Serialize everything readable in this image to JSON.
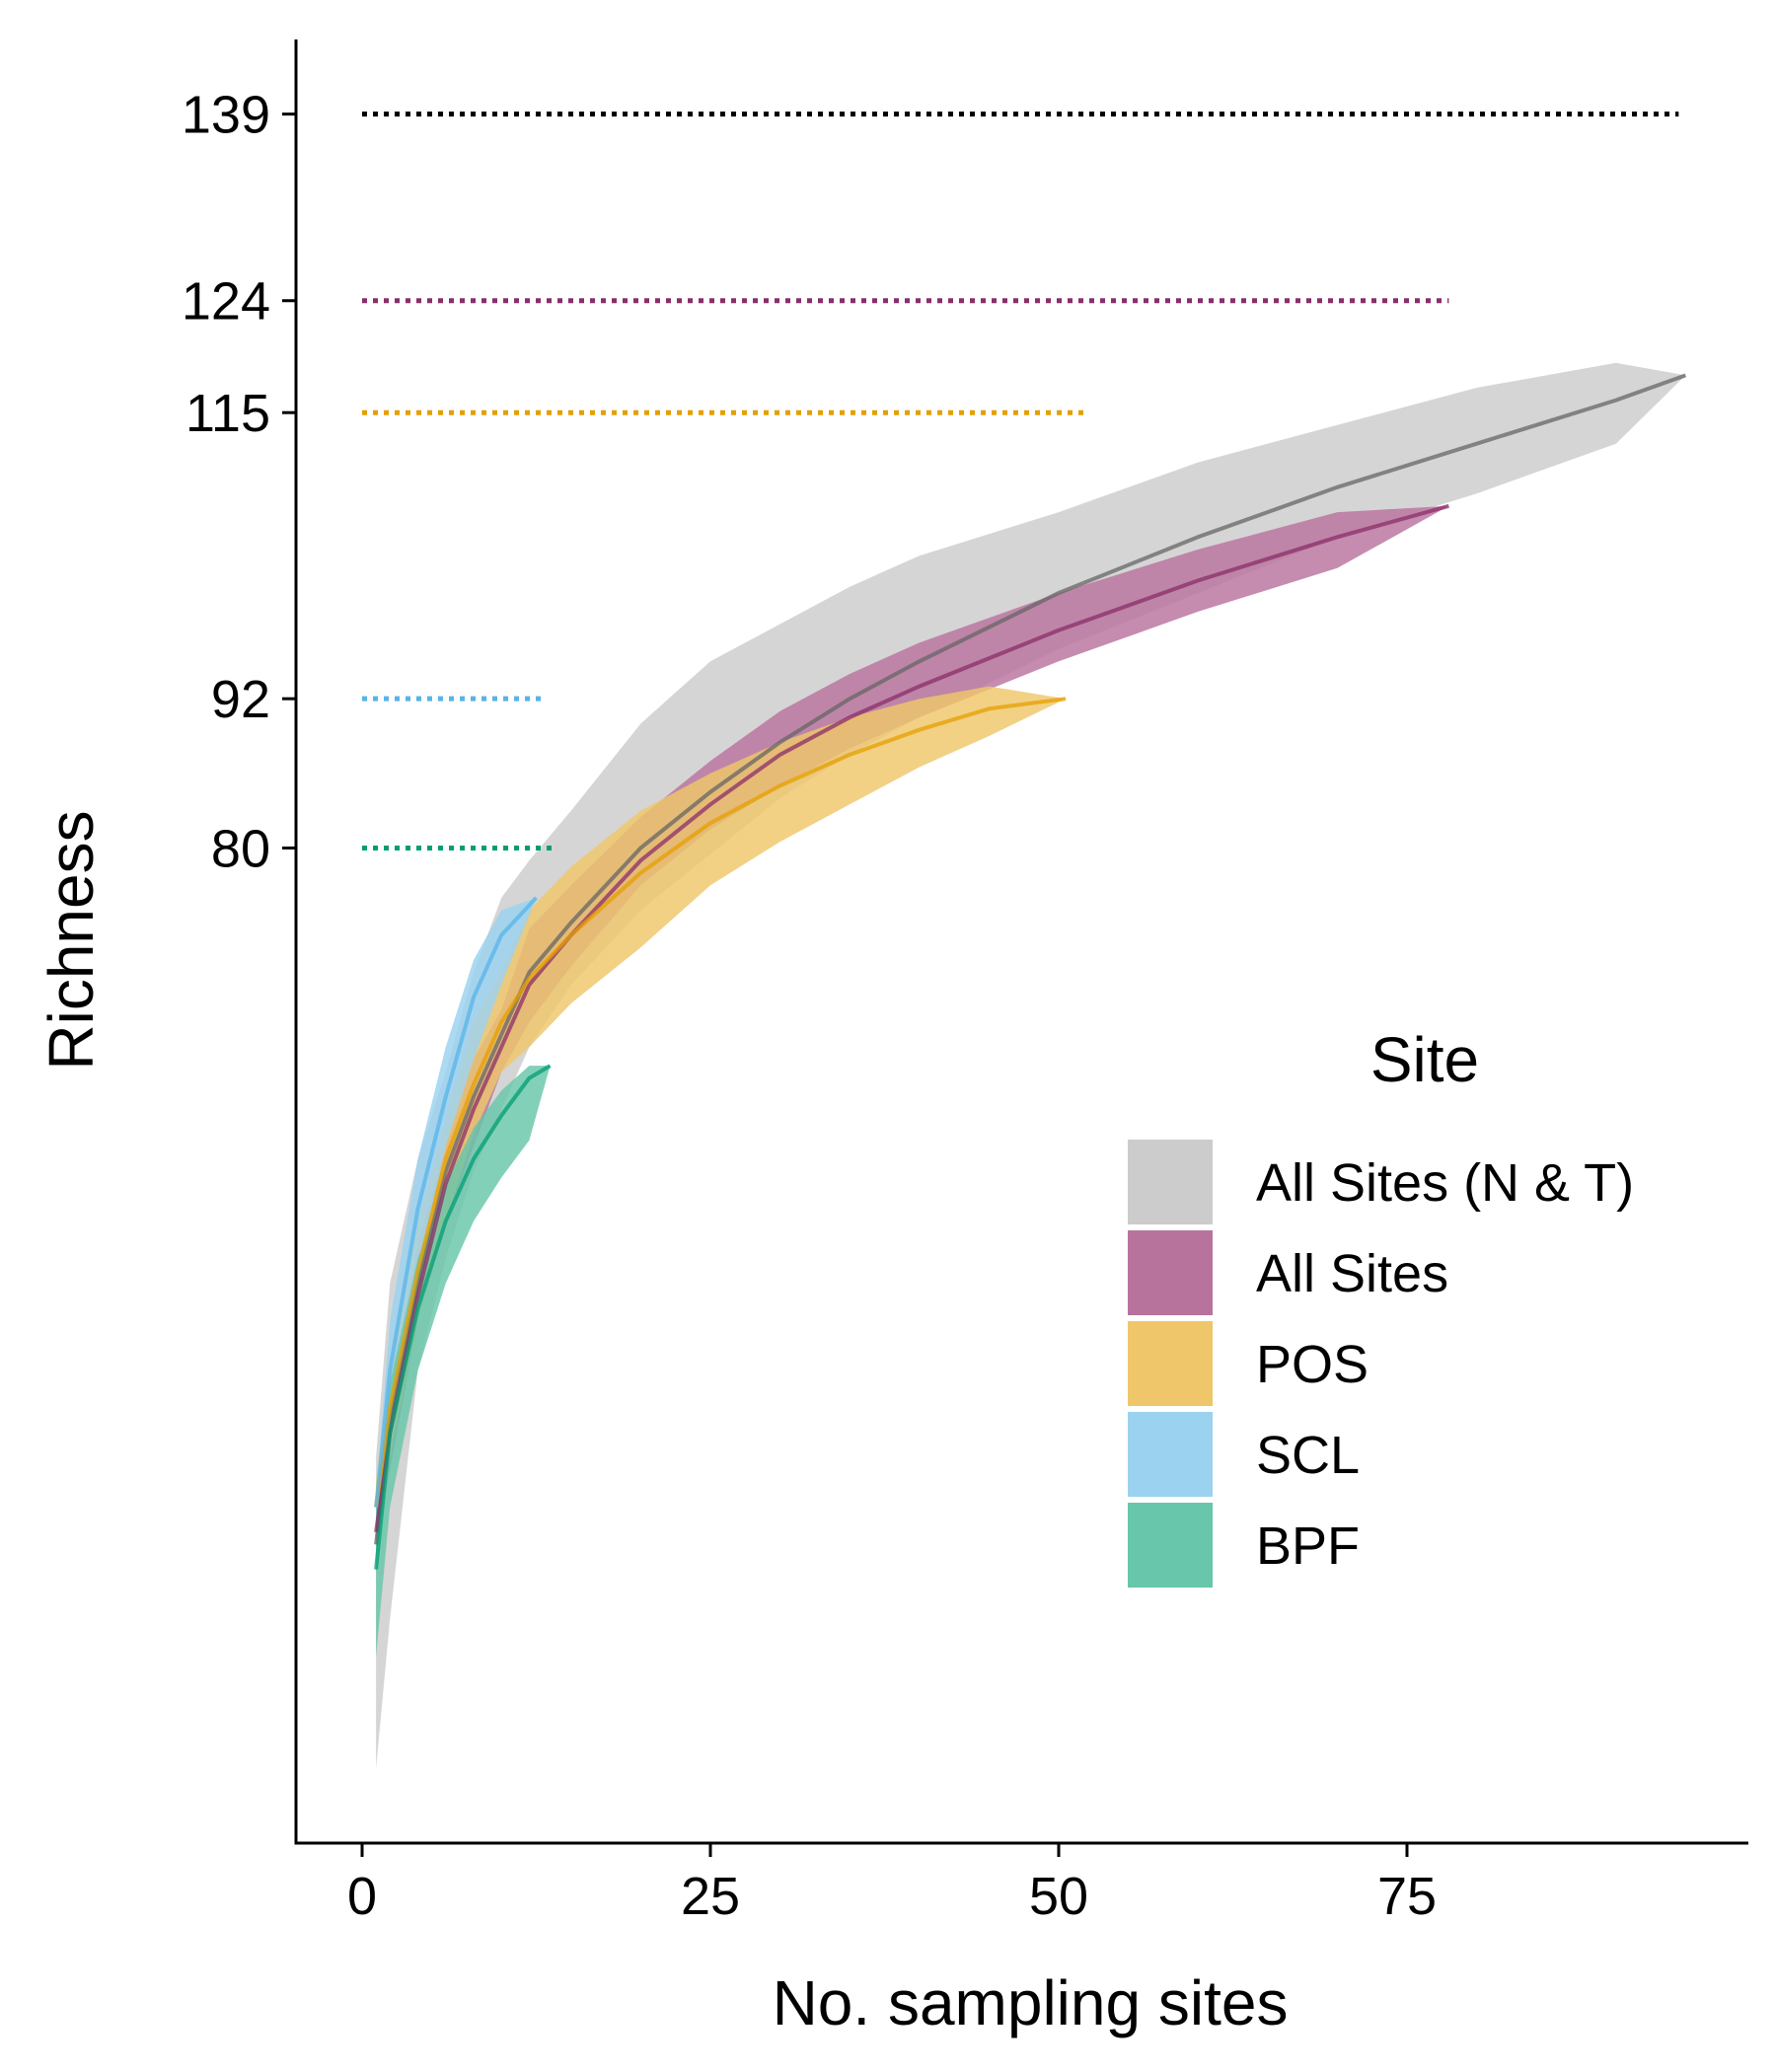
{
  "chart_data": {
    "type": "area",
    "title": "",
    "xlabel": "No. sampling sites",
    "ylabel": "Richness",
    "x_ticks": [
      0,
      25,
      50,
      75
    ],
    "y_ticks": [
      80,
      92,
      115,
      124,
      139
    ],
    "xlim": [
      -5,
      100
    ],
    "ylim": [
      0,
      145
    ],
    "grid": false,
    "legend": {
      "title": "Site",
      "placement": "right"
    },
    "series": [
      {
        "name": "All Sites (N & T)",
        "color": "#cccccc",
        "line_color": "#666666",
        "x": [
          1,
          2,
          4,
          6,
          8,
          10,
          12,
          15,
          20,
          25,
          30,
          35,
          40,
          50,
          60,
          70,
          80,
          90,
          95
        ],
        "mean": [
          24,
          34,
          45,
          54,
          60,
          65,
          70,
          74,
          80,
          84.5,
          88.5,
          92,
          95,
          100.5,
          105,
          109,
          112.5,
          116,
          118
        ],
        "lower": [
          6,
          18,
          38,
          47,
          54,
          59,
          64,
          69,
          75,
          79.5,
          84,
          87.5,
          90.5,
          96,
          100.5,
          105,
          108.5,
          112.5,
          118
        ],
        "upper": [
          31,
          45,
          55,
          62,
          70,
          76,
          79,
          83,
          90,
          95,
          98,
          101,
          103.5,
          107,
          111,
          114,
          117,
          119,
          118
        ]
      },
      {
        "name": "All Sites",
        "color": "#b8739d",
        "line_color": "#8a2e6a",
        "x": [
          1,
          2,
          4,
          6,
          8,
          10,
          12,
          15,
          20,
          25,
          30,
          35,
          40,
          50,
          60,
          70,
          78
        ],
        "mean": [
          25,
          33,
          44,
          53,
          59,
          64,
          69,
          73,
          79,
          83.5,
          87.5,
          90.5,
          93,
          97.5,
          101.5,
          105,
          107.5
        ],
        "lower": [
          24,
          30,
          42,
          50,
          56,
          62,
          66,
          70.5,
          77,
          81.5,
          85,
          88,
          90.5,
          95,
          99,
          102.5,
          107.5
        ],
        "upper": [
          27,
          37,
          48,
          56,
          63,
          67,
          73.5,
          77,
          82.5,
          87,
          91,
          94,
          96.5,
          100.5,
          104,
          107,
          107.5
        ]
      },
      {
        "name": "POS",
        "color": "#efc76a",
        "line_color": "#e69f00",
        "x": [
          1,
          2,
          4,
          6,
          8,
          10,
          12,
          15,
          20,
          25,
          30,
          35,
          40,
          45,
          50.5
        ],
        "mean": [
          27,
          35,
          46,
          55,
          61,
          66,
          69.5,
          73,
          78,
          82,
          85,
          87.5,
          89.5,
          91.2,
          92
        ],
        "lower": [
          25,
          31,
          42,
          50,
          57,
          62,
          64,
          67.5,
          72,
          77,
          80.5,
          83.5,
          86.5,
          89,
          92
        ],
        "upper": [
          29,
          39,
          50,
          58,
          66,
          70,
          75,
          78.5,
          83,
          86,
          88.5,
          90.5,
          92,
          93,
          92
        ]
      },
      {
        "name": "SCL",
        "color": "#9bd2f0",
        "line_color": "#56b4e9",
        "x": [
          1,
          2,
          4,
          6,
          8,
          10,
          12.5
        ],
        "mean": [
          27,
          38,
          51,
          60,
          68,
          73,
          76
        ],
        "lower": [
          25,
          34,
          46,
          56,
          63,
          69,
          76
        ],
        "upper": [
          28,
          42,
          55,
          64,
          71,
          75,
          76
        ]
      },
      {
        "name": "BPF",
        "color": "#68c6aa",
        "line_color": "#009e73",
        "x": [
          1,
          2,
          4,
          6,
          8,
          10,
          12,
          13.5
        ],
        "mean": [
          22,
          33,
          43,
          50,
          55,
          58.5,
          61.5,
          62.5
        ],
        "lower": [
          15,
          27,
          38,
          45,
          50,
          53.5,
          56.5,
          62.5
        ],
        "upper": [
          27,
          37,
          47,
          53,
          57.5,
          60.5,
          62.5,
          62.5
        ]
      }
    ],
    "reference_lines": [
      {
        "value": 139,
        "x_end": 94.5,
        "color": "#000000"
      },
      {
        "value": 124,
        "x_end": 78,
        "color": "#8a2e6a"
      },
      {
        "value": 115,
        "x_end": 52,
        "color": "#e69f00"
      },
      {
        "value": 92,
        "x_end": 13,
        "color": "#56b4e9"
      },
      {
        "value": 80,
        "x_end": 14,
        "color": "#009e73"
      }
    ]
  }
}
